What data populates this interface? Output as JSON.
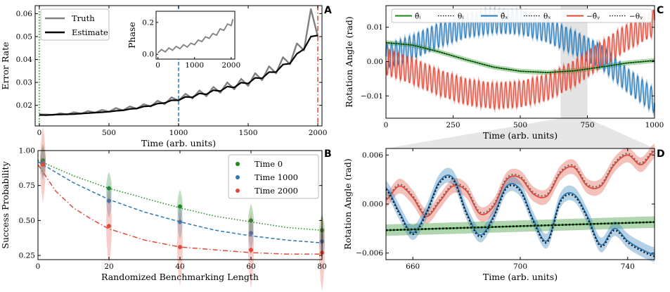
{
  "chart_data": [
    {
      "panel": "A",
      "type": "line",
      "xlabel": "Time (arb. units)",
      "ylabel": "Error Rate",
      "xlim": [
        -30,
        2030
      ],
      "ylim": [
        0.011,
        0.0635
      ],
      "xticks": [
        0,
        500,
        1000,
        1500,
        2000
      ],
      "yticks": [
        0.02,
        0.03,
        0.04,
        0.05,
        0.06
      ],
      "ytick_labels": [
        "0.02",
        "0.03",
        "0.04",
        "0.05",
        "0.06"
      ],
      "series": [
        {
          "name": "Truth",
          "color": "#808080",
          "x": [
            0,
            50,
            100,
            150,
            200,
            250,
            300,
            350,
            400,
            450,
            500,
            550,
            600,
            650,
            700,
            750,
            800,
            850,
            900,
            950,
            1000,
            1050,
            1100,
            1150,
            1200,
            1250,
            1300,
            1350,
            1400,
            1450,
            1500,
            1550,
            1600,
            1650,
            1700,
            1750,
            1800,
            1850,
            1900,
            1950,
            2000
          ],
          "y": [
            0.016,
            0.016,
            0.0158,
            0.0165,
            0.016,
            0.017,
            0.0163,
            0.0175,
            0.0168,
            0.018,
            0.0172,
            0.0188,
            0.0178,
            0.0195,
            0.0185,
            0.0205,
            0.0195,
            0.022,
            0.0205,
            0.0235,
            0.022,
            0.025,
            0.023,
            0.0265,
            0.024,
            0.028,
            0.0255,
            0.03,
            0.027,
            0.0315,
            0.0285,
            0.034,
            0.031,
            0.037,
            0.034,
            0.041,
            0.038,
            0.047,
            0.044,
            0.062,
            0.05
          ]
        },
        {
          "name": "Estimate",
          "color": "#000000",
          "x": [
            0,
            50,
            100,
            150,
            200,
            250,
            300,
            350,
            400,
            450,
            500,
            550,
            600,
            650,
            700,
            750,
            800,
            850,
            900,
            950,
            1000,
            1050,
            1100,
            1150,
            1200,
            1250,
            1300,
            1350,
            1400,
            1450,
            1500,
            1550,
            1600,
            1650,
            1700,
            1750,
            1800,
            1850,
            1900,
            1950,
            2000
          ],
          "y": [
            0.0158,
            0.0157,
            0.0159,
            0.016,
            0.0161,
            0.0162,
            0.0164,
            0.0166,
            0.0168,
            0.017,
            0.0172,
            0.0176,
            0.0178,
            0.0184,
            0.0186,
            0.0195,
            0.0197,
            0.0208,
            0.021,
            0.0222,
            0.0222,
            0.0237,
            0.0235,
            0.0252,
            0.0248,
            0.0266,
            0.0262,
            0.0282,
            0.0278,
            0.0299,
            0.0295,
            0.032,
            0.0318,
            0.0345,
            0.0345,
            0.0378,
            0.0382,
            0.0425,
            0.0445,
            0.05,
            0.0505
          ]
        }
      ],
      "vlines": [
        {
          "x": 0,
          "style": "dotted",
          "color": "#1a8a1a"
        },
        {
          "x": 1000,
          "style": "dashed",
          "color": "#2a7ab8"
        },
        {
          "x": 2000,
          "style": "dashdot",
          "color": "#e04a3a"
        }
      ],
      "inset": {
        "ylabel": "Phase",
        "xlim": [
          -50,
          2100
        ],
        "ylim": [
          -0.03,
          0.27
        ],
        "xticks": [
          0,
          1000,
          2000
        ],
        "yticks": [
          0.0,
          0.2
        ],
        "ytick_labels": [
          "0.0",
          "0.2"
        ],
        "x": [
          0,
          100,
          200,
          300,
          400,
          500,
          600,
          700,
          800,
          900,
          1000,
          1100,
          1200,
          1300,
          1400,
          1500,
          1600,
          1700,
          1800,
          1900,
          2000,
          2050
        ],
        "y": [
          0.01,
          0.03,
          0.015,
          0.04,
          0.025,
          0.05,
          0.035,
          0.06,
          0.045,
          0.07,
          0.06,
          0.09,
          0.08,
          0.11,
          0.1,
          0.13,
          0.12,
          0.16,
          0.15,
          0.19,
          0.18,
          0.22
        ]
      }
    },
    {
      "panel": "B",
      "type": "line",
      "xlabel": "Randomized Benchmarking Length",
      "ylabel": "Success Probability",
      "xlim": [
        0,
        80
      ],
      "ylim": [
        0.22,
        1.0
      ],
      "xticks": [
        0,
        20,
        40,
        60,
        80
      ],
      "yticks": [
        0.25,
        0.5,
        0.75,
        1.0
      ],
      "ytick_labels": [
        "0.25",
        "0.50",
        "0.75",
        "1.00"
      ],
      "series": [
        {
          "name": "Time 0",
          "color": "#1a8a1a",
          "fit_style": "dotted",
          "points_x": [
            1,
            20,
            40,
            60,
            80
          ],
          "points_y": [
            0.93,
            0.73,
            0.6,
            0.5,
            0.43
          ],
          "fit_x": [
            0,
            10,
            20,
            30,
            40,
            50,
            60,
            70,
            80
          ],
          "fit_y": [
            0.93,
            0.82,
            0.73,
            0.66,
            0.59,
            0.53,
            0.49,
            0.45,
            0.43
          ]
        },
        {
          "name": "Time 1000",
          "color": "#2a7ab8",
          "fit_style": "dashed",
          "points_x": [
            1,
            20,
            40,
            60,
            80
          ],
          "points_y": [
            0.91,
            0.64,
            0.49,
            0.41,
            0.35
          ],
          "fit_x": [
            0,
            10,
            20,
            30,
            40,
            50,
            60,
            70,
            80
          ],
          "fit_y": [
            0.92,
            0.77,
            0.65,
            0.56,
            0.49,
            0.43,
            0.39,
            0.36,
            0.34
          ]
        },
        {
          "name": "Time 2000",
          "color": "#e04a3a",
          "fit_style": "dashdot",
          "points_x": [
            1,
            20,
            40,
            60,
            80
          ],
          "points_y": [
            0.9,
            0.46,
            0.31,
            0.29,
            0.27
          ],
          "fit_x": [
            0,
            5,
            10,
            15,
            20,
            25,
            30,
            40,
            50,
            60,
            70,
            80
          ],
          "fit_y": [
            0.9,
            0.71,
            0.59,
            0.51,
            0.44,
            0.4,
            0.36,
            0.31,
            0.29,
            0.27,
            0.26,
            0.26
          ]
        }
      ],
      "legend": [
        "Time 0",
        "Time 1000",
        "Time 2000"
      ]
    },
    {
      "panel": "C",
      "type": "line",
      "xlabel": "Time (arb. units)",
      "ylabel": "Rotation Angle (rad)",
      "xlim": [
        0,
        1000
      ],
      "ylim": [
        -0.0165,
        0.0163
      ],
      "xticks": [
        0,
        250,
        500,
        750,
        1000
      ],
      "yticks": [
        -0.01,
        0.0,
        0.01
      ],
      "ytick_labels": [
        "−0.01",
        "0.00",
        "0.01"
      ],
      "legend": [
        "θ̂ᵢ",
        "θᵢ",
        "θ̂ₓ",
        "θₓ",
        "−θ̂ᵧ",
        "−θᵧ"
      ],
      "series": [
        {
          "name": "theta_i",
          "color": "#1a8a1a",
          "x": [
            0,
            100,
            200,
            300,
            400,
            500,
            600,
            700,
            800,
            900,
            1000
          ],
          "y": [
            0.0055,
            0.0048,
            0.0028,
            0.0005,
            -0.0016,
            -0.0028,
            -0.0032,
            -0.0027,
            -0.0016,
            -0.0004,
            0.0003
          ]
        },
        {
          "name": "theta_x",
          "color": "#2a7ab8",
          "periods": 60,
          "x": [
            0,
            100,
            200,
            300,
            400,
            500,
            600,
            700,
            800,
            900,
            1000
          ],
          "envelope": [
            0.0015,
            0.0042,
            0.0078,
            0.0105,
            0.0118,
            0.0115,
            0.0092,
            0.0055,
            0.0015,
            -0.0055,
            -0.0115
          ],
          "amplitude": 0.0035
        },
        {
          "name": "neg_theta_y",
          "color": "#e04a3a",
          "periods": 60,
          "x": [
            0,
            100,
            200,
            300,
            400,
            500,
            600,
            700,
            800,
            900,
            1000
          ],
          "envelope": [
            0.0,
            -0.0028,
            -0.0062,
            -0.0088,
            -0.01,
            -0.0095,
            -0.0075,
            -0.0035,
            0.002,
            0.0072,
            0.0115
          ],
          "amplitude": 0.0038
        }
      ],
      "highlight_span": [
        650,
        750
      ]
    },
    {
      "panel": "D",
      "type": "line",
      "xlabel": "Time (arb. units)",
      "ylabel": "Rotation Angle (rad)",
      "xlim": [
        650,
        750
      ],
      "ylim": [
        -0.0068,
        0.0068
      ],
      "xticks": [
        660,
        700,
        740
      ],
      "yticks": [
        -0.006,
        0.0,
        0.006
      ],
      "ytick_labels": [
        "−0.006",
        "0.000",
        "0.006"
      ],
      "series": [
        {
          "name": "theta_i",
          "color": "#1a8a1a",
          "x": [
            650,
            750
          ],
          "y": [
            -0.0032,
            -0.0022
          ]
        },
        {
          "name": "theta_x",
          "color": "#2a7ab8",
          "x": [
            650,
            655,
            660,
            665,
            670,
            675,
            680,
            685,
            690,
            695,
            700,
            705,
            710,
            715,
            720,
            725,
            730,
            735,
            740,
            745,
            750
          ],
          "y": [
            0.002,
            -0.001,
            -0.0035,
            -0.001,
            0.0028,
            0.0032,
            -0.001,
            -0.0038,
            -0.0015,
            0.0022,
            0.0018,
            -0.002,
            -0.0045,
            0.0005,
            0.0012,
            -0.0015,
            -0.005,
            -0.003,
            -0.0045,
            -0.0055,
            -0.0062
          ]
        },
        {
          "name": "neg_theta_y",
          "color": "#e04a3a",
          "x": [
            650,
            655,
            660,
            665,
            670,
            675,
            680,
            685,
            690,
            695,
            700,
            705,
            710,
            715,
            720,
            725,
            730,
            735,
            740,
            745,
            750
          ],
          "y": [
            0.0005,
            0.0022,
            0.0008,
            -0.0015,
            0.0003,
            0.0022,
            0.0016,
            -0.0012,
            -0.0003,
            0.003,
            0.0032,
            0.0012,
            0.001,
            0.0038,
            0.0045,
            0.0022,
            0.0022,
            0.0048,
            0.006,
            0.0048,
            0.0065
          ]
        }
      ]
    }
  ],
  "panel_labels": {
    "a": "A",
    "b": "B",
    "c": "C",
    "d": "D"
  },
  "legend_labels": {
    "truth": "Truth",
    "estimate": "Estimate",
    "time0": "Time 0",
    "time1000": "Time 1000",
    "time2000": "Time 2000",
    "c_items": [
      "θ̂ᵢ",
      "θᵢ",
      "θ̂ₓ",
      "θₓ",
      "−θ̂ᵧ",
      "−θᵧ"
    ]
  },
  "colors": {
    "green": "#1a8a1a",
    "blue": "#2a7ab8",
    "red": "#e04a3a",
    "gray": "#808080",
    "black": "#000000"
  }
}
